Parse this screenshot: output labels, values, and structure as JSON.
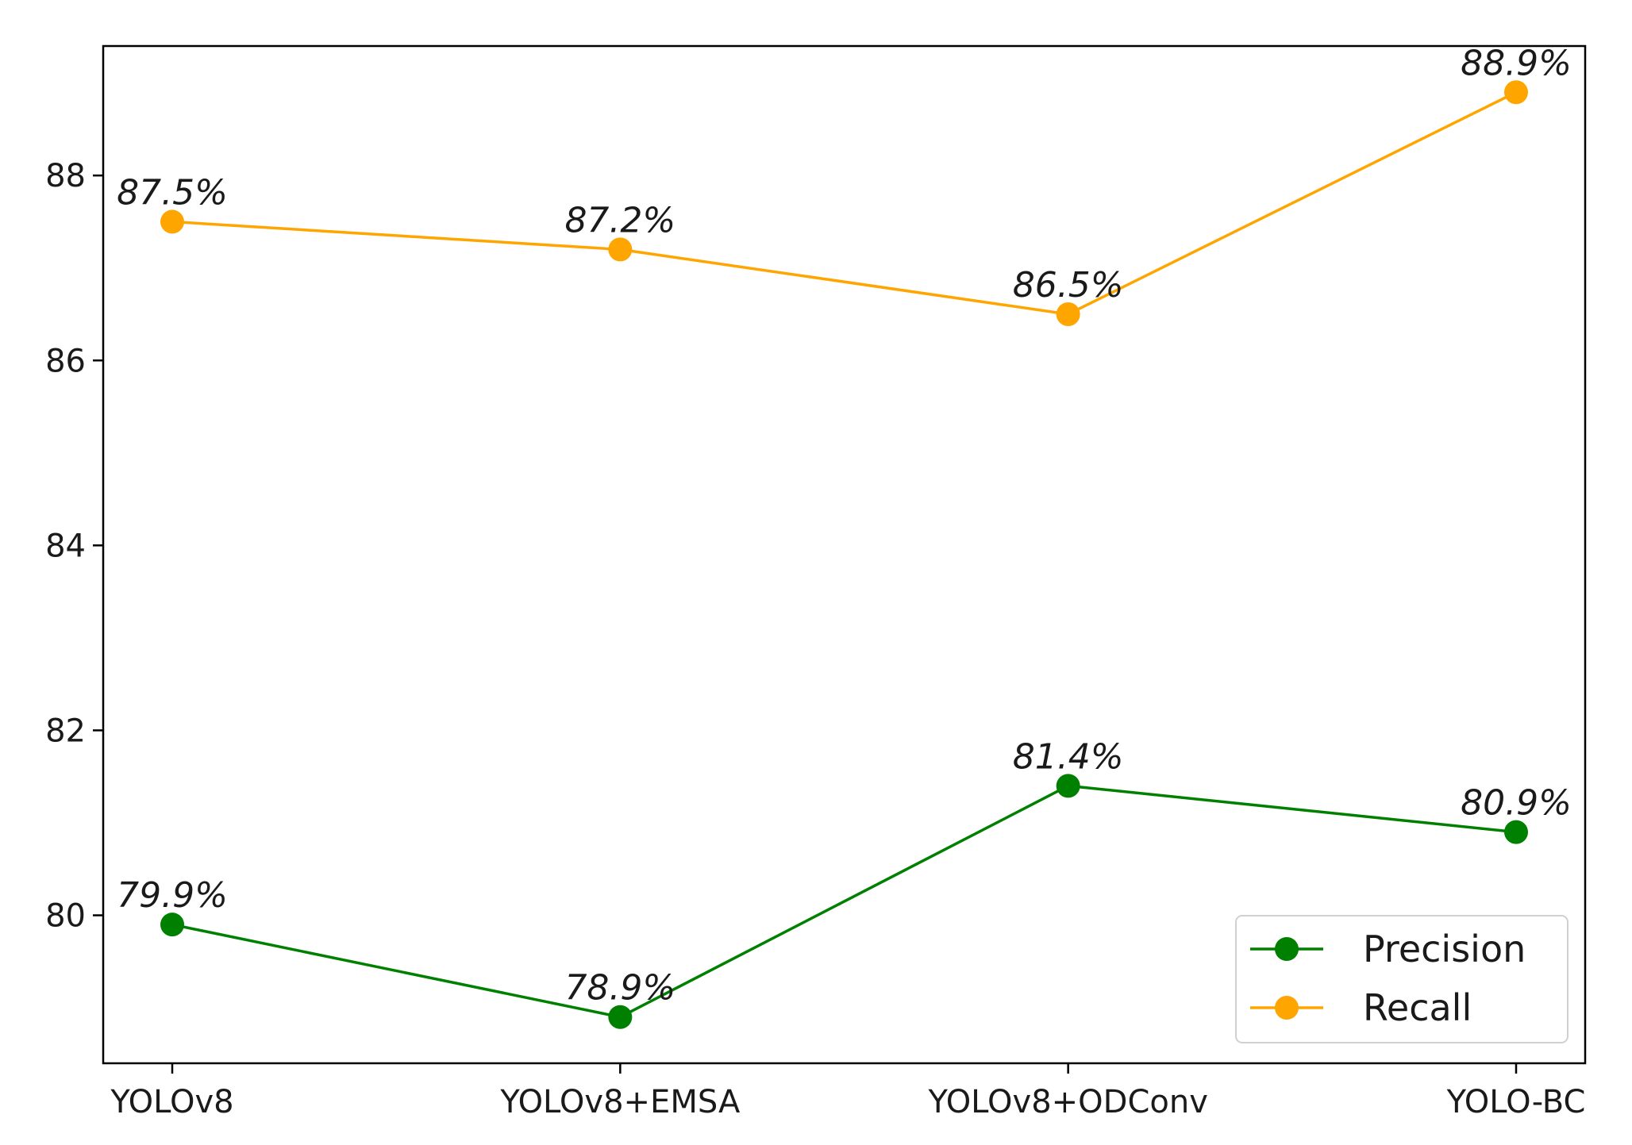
{
  "chart_data": {
    "type": "line",
    "title": "",
    "xlabel": "",
    "ylabel": "",
    "categories": [
      "YOLOv8",
      "YOLOv8+EMSA",
      "YOLOv8+ODConv",
      "YOLO-BC"
    ],
    "ylim": [
      78.4,
      89.4
    ],
    "yticks": [
      80,
      82,
      84,
      86,
      88
    ],
    "grid": false,
    "legend_position": "lower-right",
    "series": [
      {
        "name": "Precision",
        "color": "#008000",
        "values": [
          79.9,
          78.9,
          81.4,
          80.9
        ],
        "labels": [
          "79.9%",
          "78.9%",
          "81.4%",
          "80.9%"
        ]
      },
      {
        "name": "Recall",
        "color": "#FFA500",
        "values": [
          87.5,
          87.2,
          86.5,
          88.9
        ],
        "labels": [
          "87.5%",
          "87.2%",
          "86.5%",
          "88.9%"
        ]
      }
    ]
  }
}
